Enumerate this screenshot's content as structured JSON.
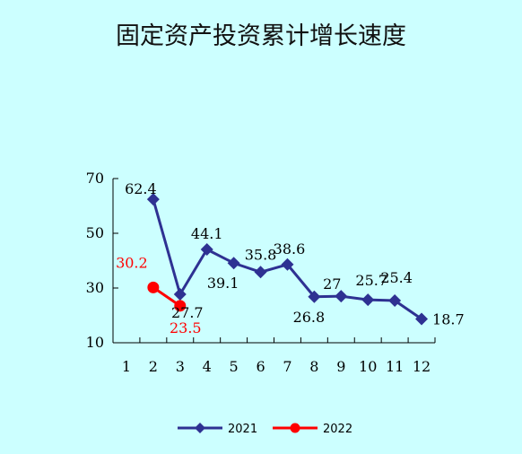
{
  "chart_data": {
    "type": "line",
    "title": "固定资产投资累计增长速度",
    "xlabel": "",
    "ylabel": "",
    "categories": [
      "1",
      "2",
      "3",
      "4",
      "5",
      "6",
      "7",
      "8",
      "9",
      "10",
      "11",
      "12"
    ],
    "y_ticks": [
      "10",
      "30",
      "50",
      "70"
    ],
    "ylim": [
      10,
      70
    ],
    "grid": false,
    "legend_position": "bottom",
    "series": [
      {
        "name": "2021",
        "color": "#2e3192",
        "marker": "diamond",
        "x": [
          "2",
          "3",
          "4",
          "5",
          "6",
          "7",
          "8",
          "9",
          "10",
          "11",
          "12"
        ],
        "values": [
          62.4,
          27.7,
          44.1,
          39.1,
          35.8,
          38.6,
          26.8,
          27,
          25.7,
          25.4,
          18.7
        ],
        "labels": [
          "62.4",
          "27.7",
          "44.1",
          "39.1",
          "35.8",
          "38.6",
          "26.8",
          "27",
          "25.7",
          "25.4",
          "18.7"
        ]
      },
      {
        "name": "2022",
        "color": "#ff0000",
        "marker": "circle",
        "x": [
          "2",
          "3"
        ],
        "values": [
          30.2,
          23.5
        ],
        "labels": [
          "30.2",
          "23.5"
        ]
      }
    ]
  }
}
